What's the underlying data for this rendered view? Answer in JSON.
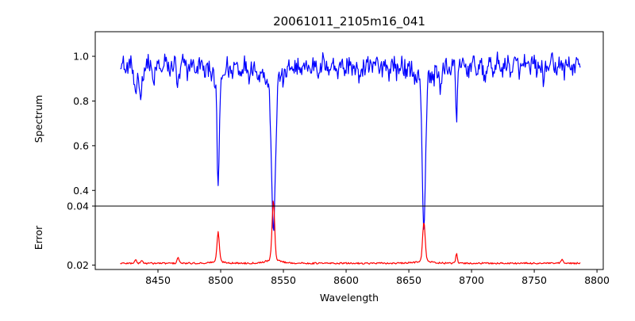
{
  "chart_data": [
    {
      "type": "line",
      "title": "20061011_2105m16_041",
      "xlabel": "",
      "ylabel": "Spectrum",
      "xlim": [
        8400,
        8805
      ],
      "ylim": [
        0.33,
        1.11
      ],
      "yticks": [
        0.4,
        0.6,
        0.8,
        1.0
      ],
      "ytick_labels": [
        "0.4",
        "0.6",
        "0.8",
        "1.0"
      ],
      "grid": false,
      "line_color": "#0000ff",
      "profile": {
        "x_start": 8420,
        "x_end": 8787,
        "continuum": 0.955,
        "noise_amplitude": 0.045,
        "features": [
          {
            "center": 8432,
            "depth": 0.12,
            "width": 1.2
          },
          {
            "center": 8436,
            "depth": 0.15,
            "width": 1.0
          },
          {
            "center": 8447,
            "depth": 0.06,
            "width": 1.2
          },
          {
            "center": 8466,
            "depth": 0.07,
            "width": 1.0
          },
          {
            "center": 8498,
            "depth": 0.47,
            "width": 0.9
          },
          {
            "center": 8542,
            "depth": 0.63,
            "width": 1.5
          },
          {
            "center": 8610,
            "depth": 0.06,
            "width": 1.2
          },
          {
            "center": 8662,
            "depth": 0.59,
            "width": 1.3
          },
          {
            "center": 8675,
            "depth": 0.08,
            "width": 1.0
          },
          {
            "center": 8688,
            "depth": 0.24,
            "width": 0.6
          },
          {
            "center": 8710,
            "depth": 0.05,
            "width": 1.0
          },
          {
            "center": 8757,
            "depth": 0.06,
            "width": 1.0
          }
        ]
      }
    },
    {
      "type": "line",
      "title": "",
      "xlabel": "Wavelength",
      "ylabel": "Error",
      "xlim": [
        8400,
        8805
      ],
      "ylim": [
        0.0185,
        0.04
      ],
      "yticks": [
        0.02,
        0.04
      ],
      "ytick_labels": [
        "0.02",
        "0.04"
      ],
      "xticks": [
        8450,
        8500,
        8550,
        8600,
        8650,
        8700,
        8750,
        8800
      ],
      "xtick_labels": [
        "8450",
        "8500",
        "8550",
        "8600",
        "8650",
        "8700",
        "8750",
        "8800"
      ],
      "grid": false,
      "line_color": "#ff0000",
      "profile": {
        "x_start": 8420,
        "x_end": 8787,
        "baseline": 0.0206,
        "noise_amplitude": 0.0004,
        "peaks": [
          {
            "center": 8432,
            "height": 0.0012,
            "width": 0.8
          },
          {
            "center": 8437,
            "height": 0.001,
            "width": 0.8
          },
          {
            "center": 8466,
            "height": 0.002,
            "width": 0.8
          },
          {
            "center": 8498,
            "height": 0.0095,
            "width": 0.9
          },
          {
            "center": 8542,
            "height": 0.019,
            "width": 1.0
          },
          {
            "center": 8662,
            "height": 0.0125,
            "width": 1.0
          },
          {
            "center": 8688,
            "height": 0.0035,
            "width": 0.6
          },
          {
            "center": 8772,
            "height": 0.0012,
            "width": 0.8
          }
        ]
      }
    }
  ]
}
